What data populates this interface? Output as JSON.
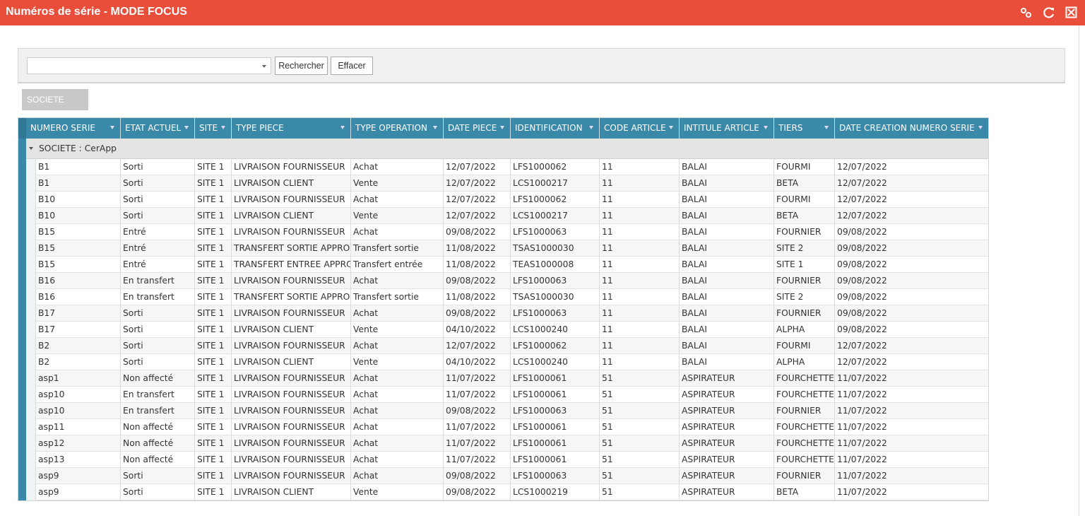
{
  "header": {
    "title": "Numéros de série - MODE FOCUS"
  },
  "search": {
    "search_button": "Rechercher",
    "clear_button": "Effacer"
  },
  "grouping": {
    "tag": "SOCIETE"
  },
  "table": {
    "columns": [
      "NUMERO SERIE",
      "ETAT ACTUEL",
      "SITE",
      "TYPE PIECE",
      "TYPE OPERATION",
      "DATE PIECE",
      "IDENTIFICATION",
      "CODE ARTICLE",
      "INTITULE ARTICLE",
      "TIERS",
      "DATE CREATION NUMERO SERIE"
    ],
    "group": "SOCIETE : CerApp",
    "rows": [
      [
        "B1",
        "Sorti",
        "SITE 1",
        "LIVRAISON FOURNISSEUR",
        "Achat",
        "12/07/2022",
        "LFS1000062",
        "11",
        "BALAI",
        "FOURMI",
        "12/07/2022"
      ],
      [
        "B1",
        "Sorti",
        "SITE 1",
        "LIVRAISON CLIENT",
        "Vente",
        "12/07/2022",
        "LCS1000217",
        "11",
        "BALAI",
        "BETA",
        "12/07/2022"
      ],
      [
        "B10",
        "Sorti",
        "SITE 1",
        "LIVRAISON FOURNISSEUR",
        "Achat",
        "12/07/2022",
        "LFS1000062",
        "11",
        "BALAI",
        "FOURMI",
        "12/07/2022"
      ],
      [
        "B10",
        "Sorti",
        "SITE 1",
        "LIVRAISON CLIENT",
        "Vente",
        "12/07/2022",
        "LCS1000217",
        "11",
        "BALAI",
        "BETA",
        "12/07/2022"
      ],
      [
        "B15",
        "Entré",
        "SITE 1",
        "LIVRAISON FOURNISSEUR",
        "Achat",
        "09/08/2022",
        "LFS1000063",
        "11",
        "BALAI",
        "FOURNIER",
        "09/08/2022"
      ],
      [
        "B15",
        "Entré",
        "SITE 1",
        "TRANSFERT SORTIE APPRO",
        "Transfert sortie",
        "11/08/2022",
        "TSAS1000030",
        "11",
        "BALAI",
        "SITE 2",
        "09/08/2022"
      ],
      [
        "B15",
        "Entré",
        "SITE 1",
        "TRANSFERT ENTREE APPRO",
        "Transfert entrée",
        "11/08/2022",
        "TEAS1000008",
        "11",
        "BALAI",
        "SITE 1",
        "09/08/2022"
      ],
      [
        "B16",
        "En transfert",
        "SITE 1",
        "LIVRAISON FOURNISSEUR",
        "Achat",
        "09/08/2022",
        "LFS1000063",
        "11",
        "BALAI",
        "FOURNIER",
        "09/08/2022"
      ],
      [
        "B16",
        "En transfert",
        "SITE 1",
        "TRANSFERT SORTIE APPRO",
        "Transfert sortie",
        "11/08/2022",
        "TSAS1000030",
        "11",
        "BALAI",
        "SITE 2",
        "09/08/2022"
      ],
      [
        "B17",
        "Sorti",
        "SITE 1",
        "LIVRAISON FOURNISSEUR",
        "Achat",
        "09/08/2022",
        "LFS1000063",
        "11",
        "BALAI",
        "FOURNIER",
        "09/08/2022"
      ],
      [
        "B17",
        "Sorti",
        "SITE 1",
        "LIVRAISON CLIENT",
        "Vente",
        "04/10/2022",
        "LCS1000240",
        "11",
        "BALAI",
        "ALPHA",
        "09/08/2022"
      ],
      [
        "B2",
        "Sorti",
        "SITE 1",
        "LIVRAISON FOURNISSEUR",
        "Achat",
        "12/07/2022",
        "LFS1000062",
        "11",
        "BALAI",
        "FOURMI",
        "12/07/2022"
      ],
      [
        "B2",
        "Sorti",
        "SITE 1",
        "LIVRAISON CLIENT",
        "Vente",
        "04/10/2022",
        "LCS1000240",
        "11",
        "BALAI",
        "ALPHA",
        "12/07/2022"
      ],
      [
        "asp1",
        "Non affecté",
        "SITE 1",
        "LIVRAISON FOURNISSEUR",
        "Achat",
        "11/07/2022",
        "LFS1000061",
        "51",
        "ASPIRATEUR",
        "FOURCHETTE",
        "11/07/2022"
      ],
      [
        "asp10",
        "En transfert",
        "SITE 1",
        "LIVRAISON FOURNISSEUR",
        "Achat",
        "11/07/2022",
        "LFS1000061",
        "51",
        "ASPIRATEUR",
        "FOURCHETTE",
        "11/07/2022"
      ],
      [
        "asp10",
        "En transfert",
        "SITE 1",
        "LIVRAISON FOURNISSEUR",
        "Achat",
        "09/08/2022",
        "LFS1000063",
        "51",
        "ASPIRATEUR",
        "FOURNIER",
        "11/07/2022"
      ],
      [
        "asp11",
        "Non affecté",
        "SITE 1",
        "LIVRAISON FOURNISSEUR",
        "Achat",
        "11/07/2022",
        "LFS1000061",
        "51",
        "ASPIRATEUR",
        "FOURCHETTE",
        "11/07/2022"
      ],
      [
        "asp12",
        "Non affecté",
        "SITE 1",
        "LIVRAISON FOURNISSEUR",
        "Achat",
        "11/07/2022",
        "LFS1000061",
        "51",
        "ASPIRATEUR",
        "FOURCHETTE",
        "11/07/2022"
      ],
      [
        "asp13",
        "Non affecté",
        "SITE 1",
        "LIVRAISON FOURNISSEUR",
        "Achat",
        "11/07/2022",
        "LFS1000061",
        "51",
        "ASPIRATEUR",
        "FOURCHETTE",
        "11/07/2022"
      ],
      [
        "asp9",
        "Sorti",
        "SITE 1",
        "LIVRAISON FOURNISSEUR",
        "Achat",
        "09/08/2022",
        "LFS1000063",
        "51",
        "ASPIRATEUR",
        "FOURNIER",
        "11/07/2022"
      ],
      [
        "asp9",
        "Sorti",
        "SITE 1",
        "LIVRAISON CLIENT",
        "Vente",
        "09/08/2022",
        "LCS1000219",
        "51",
        "ASPIRATEUR",
        "BETA",
        "11/07/2022"
      ]
    ]
  }
}
